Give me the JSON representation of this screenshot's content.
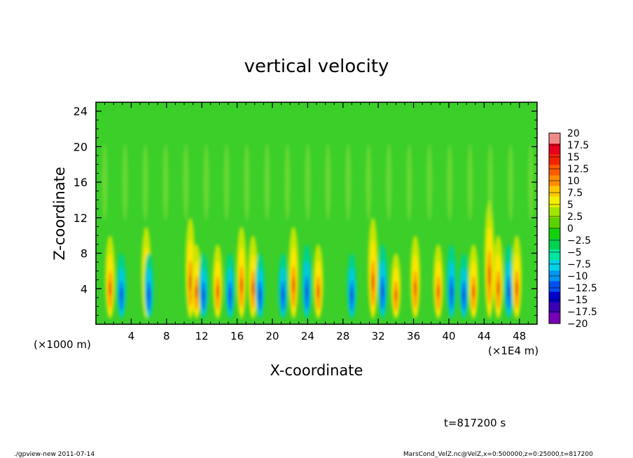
{
  "chart_data": {
    "type": "heatmap",
    "title": "vertical velocity",
    "xlabel": "X-coordinate",
    "ylabel": "Z-coordinate",
    "x_unit_left": "(×1000 m)",
    "x_unit_right": "(×1E4 m)",
    "xlim": [
      0,
      50
    ],
    "ylim": [
      0,
      25
    ],
    "x_ticks": [
      4,
      8,
      12,
      16,
      20,
      24,
      28,
      32,
      36,
      40,
      44,
      48
    ],
    "y_ticks": [
      4,
      8,
      12,
      16,
      20,
      24
    ],
    "colorbar": {
      "levels": [
        "20",
        "17.5",
        "15",
        "12.5",
        "10",
        "7.5",
        "5",
        "2.5",
        "0",
        "−2.5",
        "−5",
        "−7.5",
        "−10",
        "−12.5",
        "−15",
        "−17.5",
        "−20"
      ],
      "min": -20,
      "max": 20,
      "colors": [
        "#ef8a8a",
        "#e6001e",
        "#f22400",
        "#ff5a00",
        "#ff8c00",
        "#ffc800",
        "#f0f000",
        "#a0e600",
        "#5ad200",
        "#14d20a",
        "#00d250",
        "#00e6a0",
        "#00d2e6",
        "#0096f0",
        "#0050f0",
        "#0000c8",
        "#3c00b4",
        "#7800b4"
      ]
    },
    "features": [
      {
        "x": 1.6,
        "top": 10,
        "amp": 1
      },
      {
        "x": 2.9,
        "top": 8,
        "amp": -1
      },
      {
        "x": 5.7,
        "top": 11,
        "amp": 1
      },
      {
        "x": 6.0,
        "top": 8,
        "amp": -1
      },
      {
        "x": 10.7,
        "top": 12,
        "amp": 1
      },
      {
        "x": 11.4,
        "top": 9,
        "amp": 1
      },
      {
        "x": 12.2,
        "top": 8,
        "amp": -1
      },
      {
        "x": 13.8,
        "top": 9,
        "amp": 1
      },
      {
        "x": 15.2,
        "top": 8,
        "amp": -1
      },
      {
        "x": 16.5,
        "top": 11,
        "amp": 1
      },
      {
        "x": 17.8,
        "top": 10,
        "amp": 1
      },
      {
        "x": 18.6,
        "top": 8,
        "amp": -1
      },
      {
        "x": 21.2,
        "top": 8,
        "amp": -1
      },
      {
        "x": 22.4,
        "top": 11,
        "amp": 1
      },
      {
        "x": 23.9,
        "top": 9,
        "amp": -1
      },
      {
        "x": 25.2,
        "top": 9,
        "amp": 1
      },
      {
        "x": 29.0,
        "top": 8,
        "amp": -1
      },
      {
        "x": 31.4,
        "top": 12,
        "amp": 1
      },
      {
        "x": 32.5,
        "top": 9,
        "amp": -1
      },
      {
        "x": 34.0,
        "top": 8,
        "amp": 1
      },
      {
        "x": 36.2,
        "top": 10,
        "amp": 1
      },
      {
        "x": 38.8,
        "top": 9,
        "amp": 1
      },
      {
        "x": 40.3,
        "top": 9,
        "amp": -1
      },
      {
        "x": 41.7,
        "top": 8,
        "amp": -1
      },
      {
        "x": 42.8,
        "top": 9,
        "amp": 1
      },
      {
        "x": 44.6,
        "top": 14,
        "amp": 1
      },
      {
        "x": 45.6,
        "top": 10,
        "amp": 1
      },
      {
        "x": 46.8,
        "top": 9,
        "amp": -1
      },
      {
        "x": 47.7,
        "top": 10,
        "amp": 1
      }
    ]
  },
  "time_label": "t=817200 s",
  "footer_left": "./gpview-new   2011-07-14",
  "footer_right": "MarsCond_VelZ.nc@VelZ,x=0:500000,z=0:25000,t=817200"
}
